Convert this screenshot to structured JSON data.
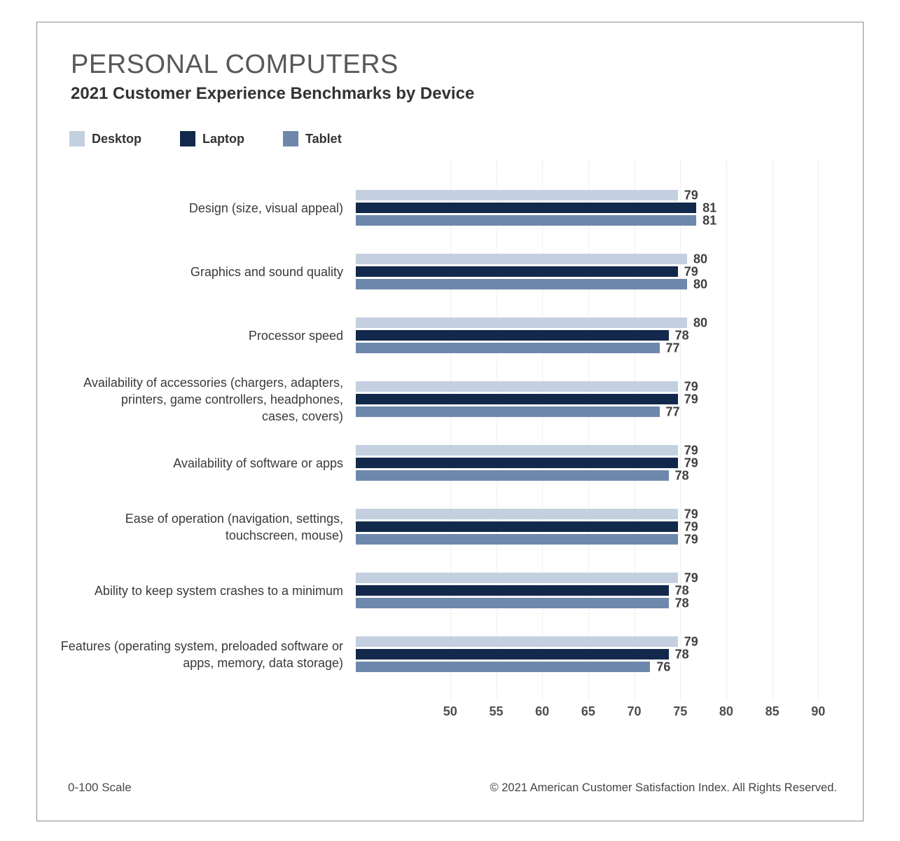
{
  "title": "PERSONAL COMPUTERS",
  "subtitle": "2021 Customer Experience Benchmarks by Device",
  "legend": [
    {
      "label": "Desktop",
      "color": "#c4d0e0"
    },
    {
      "label": "Laptop",
      "color": "#13294b"
    },
    {
      "label": "Tablet",
      "color": "#6e88ac"
    }
  ],
  "footer": {
    "left": "0-100 Scale",
    "right": "© 2021 American Customer Satisfaction Index. All Rights Reserved."
  },
  "colors": {
    "desktop": "#c4d0e0",
    "laptop": "#13294b",
    "tablet": "#6e88ac",
    "frame_border": "#8f8f8f",
    "gridline": "#e0e0e0",
    "title_text": "#57585b",
    "label_text": "#3a3a3a",
    "value_text": "#3f3f3f"
  },
  "chart_data": {
    "type": "bar",
    "orientation": "horizontal",
    "title": "PERSONAL COMPUTERS",
    "subtitle": "2021 Customer Experience Benchmarks by Device",
    "scale_note": "0-100 Scale",
    "grid": "vertical-dotted",
    "legend_position": "top-left",
    "categories": [
      "Design (size, visual appeal)",
      "Graphics and sound quality",
      "Processor speed",
      "Availability of accessories (chargers, adapters,\nprinters, game controllers, headphones,\ncases, covers)",
      "Availability of software or apps",
      "Ease of operation (navigation, settings,\ntouchscreen, mouse)",
      "Ability to keep system crashes to a minimum",
      "Features (operating system, preloaded software or\napps, memory, data storage)"
    ],
    "series": [
      {
        "name": "Desktop",
        "color": "#c4d0e0",
        "values": [
          79,
          80,
          80,
          79,
          79,
          79,
          79,
          79
        ]
      },
      {
        "name": "Laptop",
        "color": "#13294b",
        "values": [
          81,
          79,
          78,
          79,
          79,
          79,
          78,
          78
        ]
      },
      {
        "name": "Tablet",
        "color": "#6e88ac",
        "values": [
          81,
          80,
          77,
          77,
          78,
          79,
          78,
          76
        ]
      }
    ],
    "x_ticks": [
      50,
      55,
      60,
      65,
      70,
      75,
      80,
      85,
      90
    ],
    "xlim_rendered": [
      44,
      95
    ],
    "value_scale": [
      0,
      100
    ]
  }
}
